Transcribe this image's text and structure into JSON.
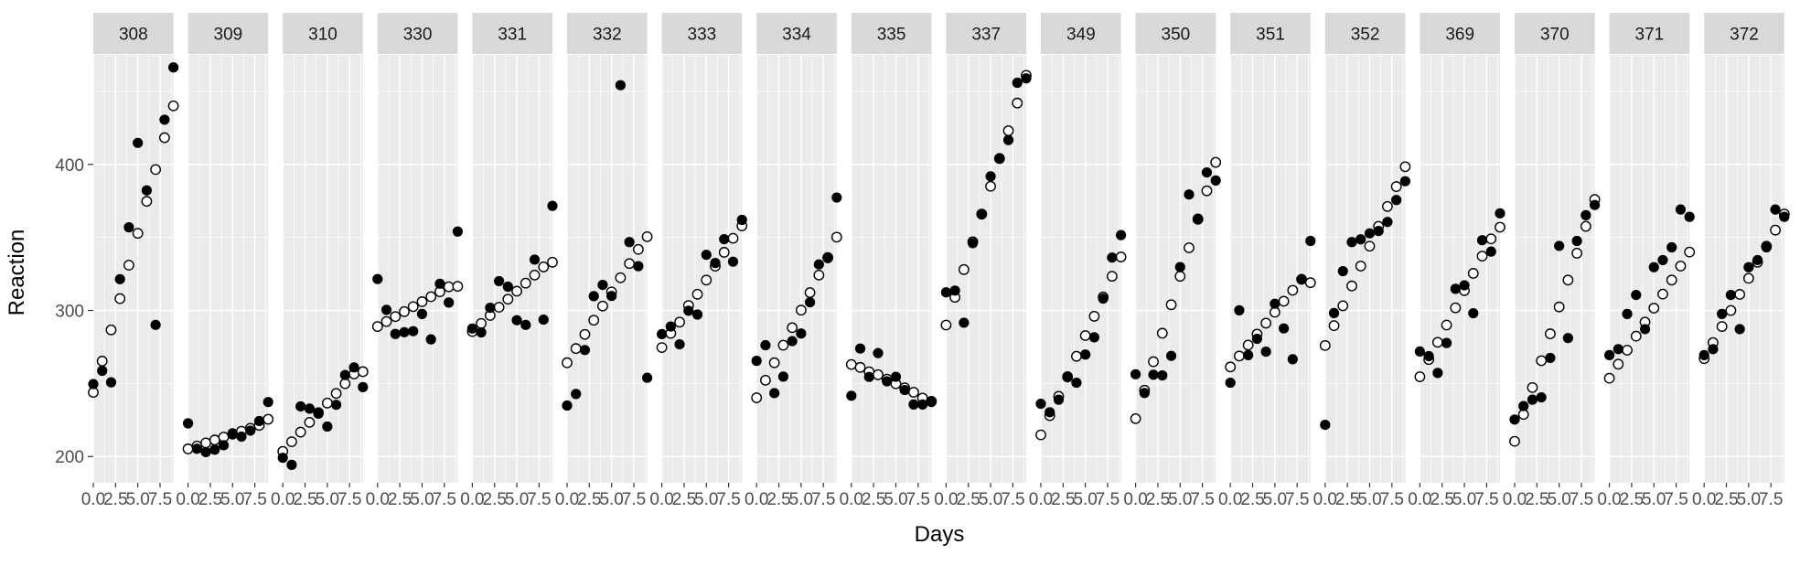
{
  "chart_data": {
    "type": "scatter",
    "xlabel": "Days",
    "ylabel": "Reaction",
    "xlim": [
      0,
      9
    ],
    "ylim": [
      182,
      475
    ],
    "x_ticks": [
      0,
      2.5,
      5,
      7.5
    ],
    "x_tick_labels": [
      "0.0",
      "2.5",
      "5.0",
      "7.5"
    ],
    "y_ticks": [
      200,
      300,
      400
    ],
    "y_tick_labels": [
      "200",
      "300",
      "400"
    ],
    "grid": true,
    "legend": "none",
    "colors": {
      "panel_bg": "#ebebeb",
      "strip_bg": "#d9d9d9",
      "grid": "#ffffff",
      "point": "#000000",
      "tick_text": "#4d4d4d"
    },
    "series_styles": {
      "observed": "filled-circle",
      "fitted": "open-circle"
    },
    "x": [
      0,
      1,
      2,
      3,
      4,
      5,
      6,
      7,
      8,
      9
    ],
    "panels": [
      {
        "subject": "308",
        "observed": [
          249.6,
          258.7,
          250.8,
          321.4,
          356.9,
          414.7,
          382.2,
          290.1,
          430.6,
          466.4
        ],
        "fitted": [
          243.9,
          265.3,
          286.7,
          308.1,
          331.0,
          352.8,
          374.7,
          396.5,
          418.3,
          440.1
        ]
      },
      {
        "subject": "309",
        "observed": [
          222.7,
          205.3,
          203.0,
          204.7,
          207.7,
          215.9,
          213.6,
          217.7,
          224.3,
          237.3
        ],
        "fitted": [
          205.2,
          207.2,
          209.3,
          211.3,
          213.3,
          215.3,
          217.3,
          219.3,
          221.3,
          225.5
        ]
      },
      {
        "subject": "310",
        "observed": [
          199.1,
          194.3,
          234.3,
          232.8,
          229.3,
          220.5,
          235.4,
          255.8,
          261.0,
          247.5
        ],
        "fitted": [
          203.5,
          210.1,
          216.7,
          223.4,
          230.0,
          236.6,
          243.2,
          249.9,
          256.5,
          258.1
        ]
      },
      {
        "subject": "330",
        "observed": [
          321.5,
          300.4,
          283.9,
          285.1,
          285.8,
          297.6,
          280.2,
          318.3,
          305.4,
          354.0
        ],
        "fitted": [
          289.0,
          292.4,
          295.8,
          299.2,
          302.6,
          306.0,
          309.4,
          312.8,
          316.2,
          316.5
        ]
      },
      {
        "subject": "331",
        "observed": [
          287.6,
          285.0,
          301.8,
          320.1,
          316.3,
          293.3,
          290.1,
          334.8,
          293.7,
          371.6
        ],
        "fitted": [
          285.6,
          291.1,
          296.6,
          302.2,
          307.7,
          313.2,
          318.7,
          324.2,
          329.8,
          333.0
        ]
      },
      {
        "subject": "332",
        "observed": [
          234.9,
          242.8,
          272.9,
          309.8,
          317.5,
          309.9,
          454.2,
          346.8,
          330.3,
          253.9
        ],
        "fitted": [
          264.2,
          273.9,
          283.6,
          293.3,
          303.0,
          312.7,
          322.4,
          332.1,
          341.8,
          350.5
        ]
      },
      {
        "subject": "333",
        "observed": [
          283.8,
          289.0,
          276.8,
          299.8,
          297.2,
          338.1,
          332.5,
          348.8,
          333.4,
          362.0
        ],
        "fitted": [
          274.6,
          284.3,
          292.0,
          303.4,
          311.1,
          320.8,
          330.3,
          339.8,
          349.4,
          357.9
        ]
      },
      {
        "subject": "334",
        "observed": [
          265.5,
          276.2,
          243.4,
          254.7,
          279.0,
          284.2,
          305.6,
          331.5,
          335.8,
          377.3
        ],
        "fitted": [
          240.2,
          252.2,
          264.2,
          276.2,
          288.2,
          300.2,
          312.2,
          324.2,
          336.2,
          350.2
        ]
      },
      {
        "subject": "335",
        "observed": [
          241.6,
          273.9,
          254.5,
          270.8,
          251.5,
          254.6,
          245.5,
          235.6,
          235.6,
          237.3
        ],
        "fitted": [
          263.0,
          261.0,
          258.0,
          256.0,
          253.0,
          249.8,
          247.0,
          244.0,
          240.0,
          237.8
        ]
      },
      {
        "subject": "337",
        "observed": [
          312.4,
          313.6,
          291.6,
          346.1,
          365.7,
          391.8,
          404.3,
          416.7,
          455.9,
          458.9
        ],
        "fitted": [
          290.0,
          309.0,
          328.0,
          347.0,
          366.0,
          385.0,
          404.0,
          423.0,
          442.0,
          461.0
        ]
      },
      {
        "subject": "349",
        "observed": [
          236.1,
          230.3,
          238.9,
          254.9,
          250.5,
          269.8,
          281.6,
          308.1,
          336.2,
          351.6
        ],
        "fitted": [
          214.8,
          228.0,
          241.2,
          254.4,
          268.6,
          282.8,
          296.0,
          309.2,
          323.4,
          336.6
        ]
      },
      {
        "subject": "350",
        "observed": [
          256.3,
          243.5,
          256.0,
          255.5,
          268.9,
          329.7,
          379.4,
          362.9,
          394.5,
          389.0
        ],
        "fitted": [
          225.9,
          245.4,
          264.9,
          284.4,
          303.9,
          323.4,
          342.9,
          362.4,
          381.9,
          401.4
        ]
      },
      {
        "subject": "351",
        "observed": [
          250.5,
          300.1,
          269.4,
          280.6,
          271.8,
          304.6,
          287.7,
          266.6,
          321.5,
          347.6
        ],
        "fitted": [
          261.3,
          268.8,
          276.3,
          283.8,
          291.3,
          298.8,
          306.3,
          313.8,
          321.3,
          319.0
        ]
      },
      {
        "subject": "352",
        "observed": [
          221.7,
          298.2,
          326.9,
          346.8,
          348.7,
          352.8,
          354.4,
          360.6,
          375.6,
          388.5
        ],
        "fitted": [
          276.0,
          289.6,
          303.2,
          316.8,
          330.4,
          344.0,
          357.6,
          371.2,
          384.8,
          398.4
        ]
      },
      {
        "subject": "369",
        "observed": [
          271.9,
          268.7,
          257.2,
          277.7,
          314.8,
          317.2,
          298.1,
          348.1,
          340.3,
          366.5
        ],
        "fitted": [
          254.6,
          266.4,
          278.2,
          290.0,
          301.8,
          313.6,
          325.4,
          337.2,
          349.0,
          357.0
        ]
      },
      {
        "subject": "370",
        "observed": [
          225.3,
          234.5,
          238.9,
          240.5,
          267.5,
          344.2,
          281.1,
          347.6,
          365.2,
          372.2
        ],
        "fitted": [
          210.4,
          228.8,
          247.2,
          265.6,
          284.0,
          302.4,
          320.8,
          339.2,
          357.6,
          376.0
        ]
      },
      {
        "subject": "371",
        "observed": [
          269.4,
          273.5,
          297.6,
          310.6,
          287.2,
          329.6,
          334.5,
          343.2,
          369.1,
          364.1
        ],
        "fitted": [
          253.6,
          263.2,
          272.8,
          282.4,
          292.0,
          301.6,
          311.2,
          320.8,
          330.4,
          340.0
        ]
      },
      {
        "subject": "372",
        "observed": [
          269.4,
          273.5,
          297.6,
          310.6,
          287.2,
          329.6,
          334.5,
          343.2,
          369.1,
          364.1
        ],
        "fitted": [
          267.0,
          278.0,
          289.0,
          300.0,
          311.0,
          322.0,
          333.0,
          344.0,
          355.0,
          366.0
        ]
      }
    ]
  }
}
